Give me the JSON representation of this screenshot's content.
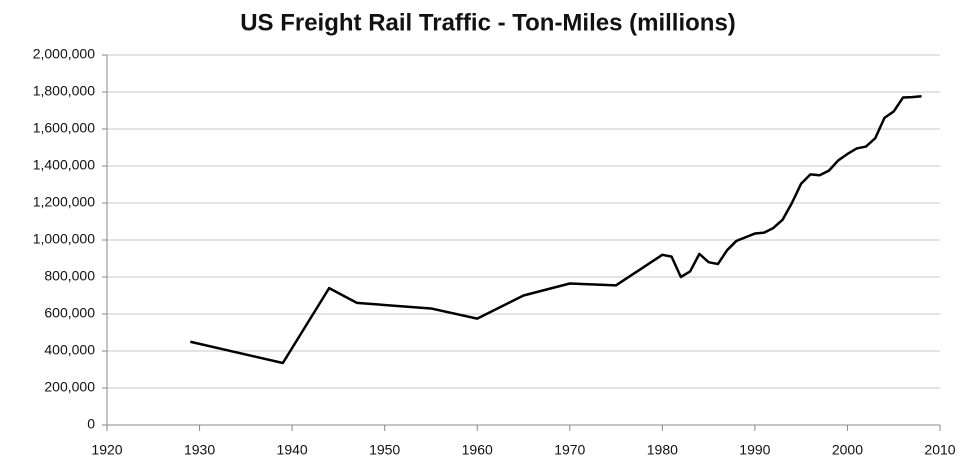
{
  "chart_data": {
    "type": "line",
    "title": "US Freight Rail Traffic - Ton-Miles (millions)",
    "x": [
      1929,
      1939,
      1944,
      1947,
      1955,
      1960,
      1965,
      1970,
      1975,
      1980,
      1981,
      1982,
      1983,
      1984,
      1985,
      1986,
      1987,
      1988,
      1989,
      1990,
      1991,
      1992,
      1993,
      1994,
      1995,
      1996,
      1997,
      1998,
      1999,
      2000,
      2001,
      2002,
      2003,
      2004,
      2005,
      2006,
      2007,
      2008
    ],
    "series": [
      {
        "color": "#000000",
        "values": [
          450000,
          335000,
          740000,
          660000,
          630000,
          575000,
          700000,
          765000,
          755000,
          920000,
          910000,
          800000,
          830000,
          925000,
          880000,
          870000,
          945000,
          995000,
          1015000,
          1035000,
          1040000,
          1065000,
          1110000,
          1200000,
          1305000,
          1355000,
          1350000,
          1375000,
          1430000,
          1465000,
          1495000,
          1505000,
          1550000,
          1660000,
          1695000,
          1770000,
          1772000,
          1777000
        ]
      }
    ],
    "xlim": [
      1920,
      2010
    ],
    "xticks": [
      1920,
      1930,
      1940,
      1950,
      1960,
      1970,
      1980,
      1990,
      2000,
      2010
    ],
    "ylim": [
      0,
      2000000
    ],
    "yticks": [
      0,
      {
        "value": 200000,
        "label": "200,000"
      },
      {
        "value": 400000,
        "label": "400,000"
      },
      {
        "value": 600000,
        "label": "600,000"
      },
      {
        "value": 800000,
        "label": "800,000"
      },
      {
        "value": 1000000,
        "label": "1,000,000"
      },
      {
        "value": 1200000,
        "label": "1,200,000"
      },
      {
        "value": 1400000,
        "label": "1,400,000"
      },
      {
        "value": 1600000,
        "label": "1,600,000"
      },
      {
        "value": 1800000,
        "label": "1,800,000"
      },
      {
        "value": 2000000,
        "label": "2,000,000"
      }
    ],
    "grid": true
  }
}
